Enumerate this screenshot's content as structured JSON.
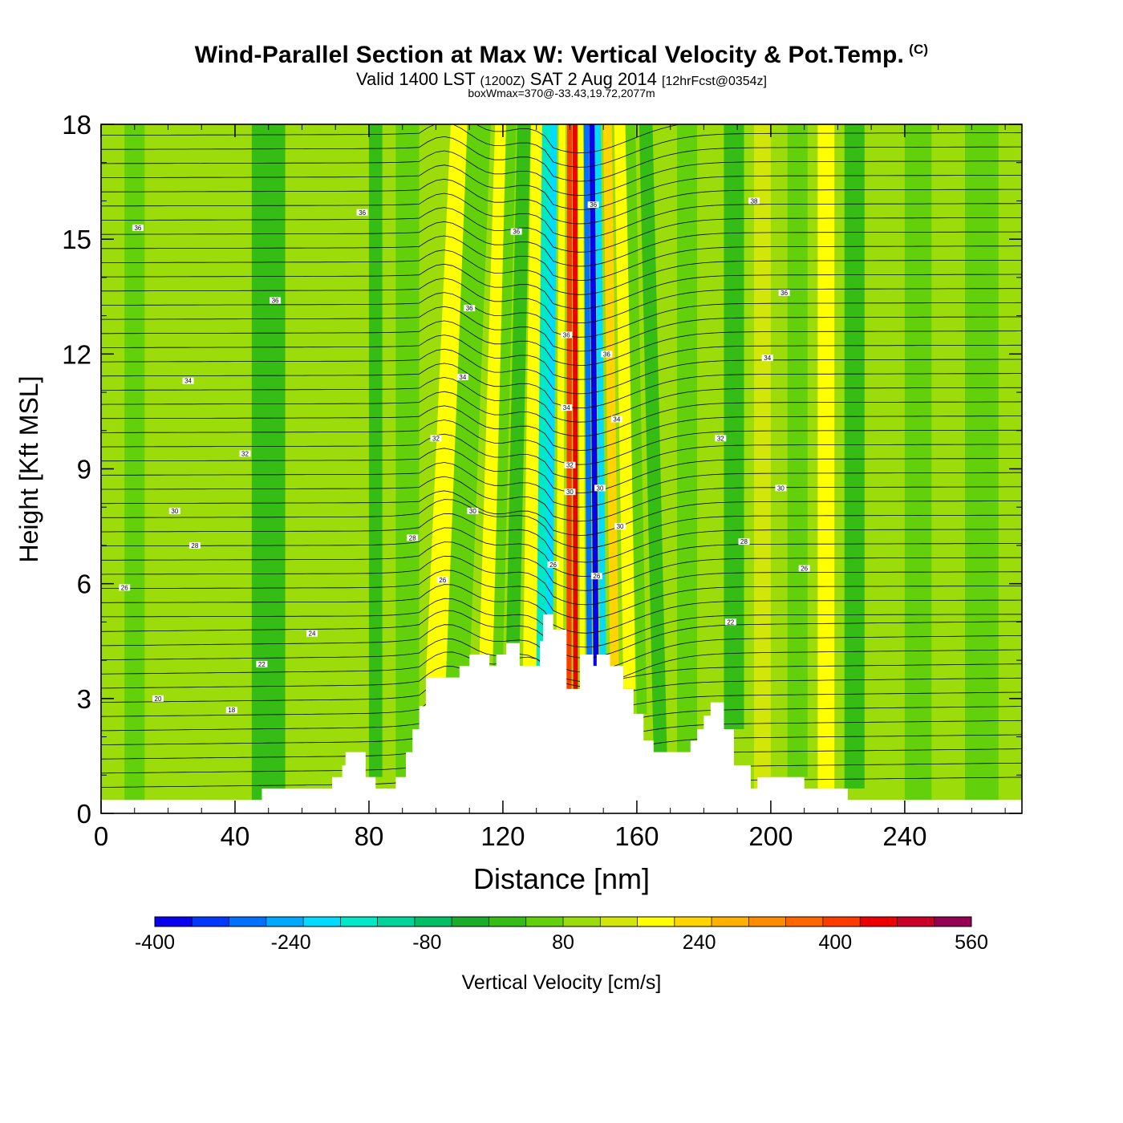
{
  "chart_data": {
    "type": "heatmap",
    "title": "Wind-Parallel Section at Max W: Vertical Velocity & Pot.Temp.",
    "title_mark": "(C)",
    "subtitle_main_left": "Valid 1400 LST",
    "subtitle_small_1": "(1200Z)",
    "subtitle_main_right": "SAT 2 Aug 2014",
    "subtitle_small_2": "[12hrFcst@0354z]",
    "subtitle2": "boxWmax=370@-33.43,19.72,2077m",
    "xlabel": "Distance [nm]",
    "ylabel": "Height [Kft MSL]",
    "xlim": [
      0,
      275
    ],
    "ylim": [
      0,
      18
    ],
    "xticks": [
      0,
      40,
      80,
      120,
      160,
      200,
      240
    ],
    "yticks": [
      0,
      3,
      6,
      9,
      12,
      15,
      18
    ],
    "colorbar": {
      "label": "Vertical Velocity [cm/s]",
      "min": -400,
      "max": 560,
      "step": 40,
      "tick_labels": [
        -400,
        -240,
        -80,
        80,
        240,
        400,
        560
      ],
      "colors": [
        "#0a00f0",
        "#0038ff",
        "#0070ff",
        "#00a8ff",
        "#00dcff",
        "#00e8c8",
        "#00d49a",
        "#00bf64",
        "#19ad2a",
        "#35bd16",
        "#62d00a",
        "#9bdc0a",
        "#d2e60a",
        "#ffff00",
        "#ffd400",
        "#ffb000",
        "#ff8c00",
        "#ff6600",
        "#ff3c00",
        "#ee0000",
        "#c80028",
        "#960050"
      ]
    },
    "background_w_cms": 40,
    "updraft_max_w_cms": 370,
    "terrain": [
      [
        0,
        0.35
      ],
      [
        48,
        0.35
      ],
      [
        48,
        0.65
      ],
      [
        69,
        0.65
      ],
      [
        69,
        0.95
      ],
      [
        72,
        0.95
      ],
      [
        72,
        1.25
      ],
      [
        73,
        1.25
      ],
      [
        73,
        1.6
      ],
      [
        79,
        1.6
      ],
      [
        79,
        0.95
      ],
      [
        82,
        0.95
      ],
      [
        82,
        0.65
      ],
      [
        88,
        0.65
      ],
      [
        88,
        0.95
      ],
      [
        91,
        0.95
      ],
      [
        91,
        1.6
      ],
      [
        93,
        1.6
      ],
      [
        93,
        2.2
      ],
      [
        95,
        2.2
      ],
      [
        95,
        2.8
      ],
      [
        97,
        2.8
      ],
      [
        97,
        3.55
      ],
      [
        107,
        3.55
      ],
      [
        107,
        3.85
      ],
      [
        110,
        3.85
      ],
      [
        110,
        4.15
      ],
      [
        116,
        4.15
      ],
      [
        116,
        3.85
      ],
      [
        118,
        3.85
      ],
      [
        118,
        4.15
      ],
      [
        121,
        4.15
      ],
      [
        121,
        4.45
      ],
      [
        125,
        4.45
      ],
      [
        125,
        3.85
      ],
      [
        131,
        3.85
      ],
      [
        131,
        4.5
      ],
      [
        132,
        4.5
      ],
      [
        132,
        5.2
      ],
      [
        135,
        5.2
      ],
      [
        135,
        4.8
      ],
      [
        139,
        4.8
      ],
      [
        139,
        3.25
      ],
      [
        143,
        3.25
      ],
      [
        143,
        4.15
      ],
      [
        147,
        4.15
      ],
      [
        147,
        3.85
      ],
      [
        148,
        3.85
      ],
      [
        148,
        4.15
      ],
      [
        152,
        4.15
      ],
      [
        152,
        3.85
      ],
      [
        156,
        3.85
      ],
      [
        156,
        3.25
      ],
      [
        159,
        3.25
      ],
      [
        159,
        2.6
      ],
      [
        162,
        2.6
      ],
      [
        162,
        1.9
      ],
      [
        165,
        1.9
      ],
      [
        165,
        1.6
      ],
      [
        176,
        1.6
      ],
      [
        176,
        1.9
      ],
      [
        178,
        1.9
      ],
      [
        178,
        2.2
      ],
      [
        180,
        2.2
      ],
      [
        180,
        2.55
      ],
      [
        182,
        2.55
      ],
      [
        182,
        2.9
      ],
      [
        186,
        2.9
      ],
      [
        186,
        2.2
      ],
      [
        189,
        2.2
      ],
      [
        189,
        1.25
      ],
      [
        194,
        1.25
      ],
      [
        194,
        0.65
      ],
      [
        196,
        0.65
      ],
      [
        196,
        0.95
      ],
      [
        210,
        0.95
      ],
      [
        210,
        0.65
      ],
      [
        223,
        0.65
      ],
      [
        223,
        0.35
      ],
      [
        275,
        0.35
      ]
    ],
    "theta_labels": [
      {
        "x": 11,
        "y": 15.3,
        "text": "36"
      },
      {
        "x": 78,
        "y": 15.7,
        "text": "36"
      },
      {
        "x": 52,
        "y": 13.4,
        "text": "36"
      },
      {
        "x": 26,
        "y": 11.3,
        "text": "34"
      },
      {
        "x": 43,
        "y": 9.4,
        "text": "32"
      },
      {
        "x": 22,
        "y": 7.9,
        "text": "30"
      },
      {
        "x": 28,
        "y": 7.0,
        "text": "28"
      },
      {
        "x": 7,
        "y": 5.9,
        "text": "26"
      },
      {
        "x": 63,
        "y": 4.7,
        "text": "24"
      },
      {
        "x": 48,
        "y": 3.9,
        "text": "22"
      },
      {
        "x": 17,
        "y": 3.0,
        "text": "20"
      },
      {
        "x": 39,
        "y": 2.7,
        "text": "18"
      },
      {
        "x": 124,
        "y": 15.2,
        "text": "36"
      },
      {
        "x": 110,
        "y": 13.2,
        "text": "36"
      },
      {
        "x": 108,
        "y": 11.4,
        "text": "34"
      },
      {
        "x": 100,
        "y": 9.8,
        "text": "32"
      },
      {
        "x": 93,
        "y": 7.2,
        "text": "28"
      },
      {
        "x": 102,
        "y": 6.1,
        "text": "26"
      },
      {
        "x": 111,
        "y": 7.9,
        "text": "30"
      },
      {
        "x": 135,
        "y": 6.5,
        "text": "26"
      },
      {
        "x": 139,
        "y": 12.5,
        "text": "36"
      },
      {
        "x": 139,
        "y": 10.6,
        "text": "34"
      },
      {
        "x": 140,
        "y": 9.1,
        "text": "32"
      },
      {
        "x": 140,
        "y": 8.4,
        "text": "30"
      },
      {
        "x": 147,
        "y": 15.9,
        "text": "36"
      },
      {
        "x": 151,
        "y": 12.0,
        "text": "36"
      },
      {
        "x": 154,
        "y": 10.3,
        "text": "34"
      },
      {
        "x": 149,
        "y": 8.5,
        "text": "30"
      },
      {
        "x": 155,
        "y": 7.5,
        "text": "30"
      },
      {
        "x": 148,
        "y": 6.2,
        "text": "26"
      },
      {
        "x": 195,
        "y": 16.0,
        "text": "38"
      },
      {
        "x": 204,
        "y": 13.6,
        "text": "36"
      },
      {
        "x": 199,
        "y": 11.9,
        "text": "34"
      },
      {
        "x": 185,
        "y": 9.8,
        "text": "32"
      },
      {
        "x": 203,
        "y": 8.5,
        "text": "30"
      },
      {
        "x": 192,
        "y": 7.1,
        "text": "28"
      },
      {
        "x": 210,
        "y": 6.4,
        "text": "26"
      },
      {
        "x": 188,
        "y": 5.0,
        "text": "22"
      }
    ]
  }
}
